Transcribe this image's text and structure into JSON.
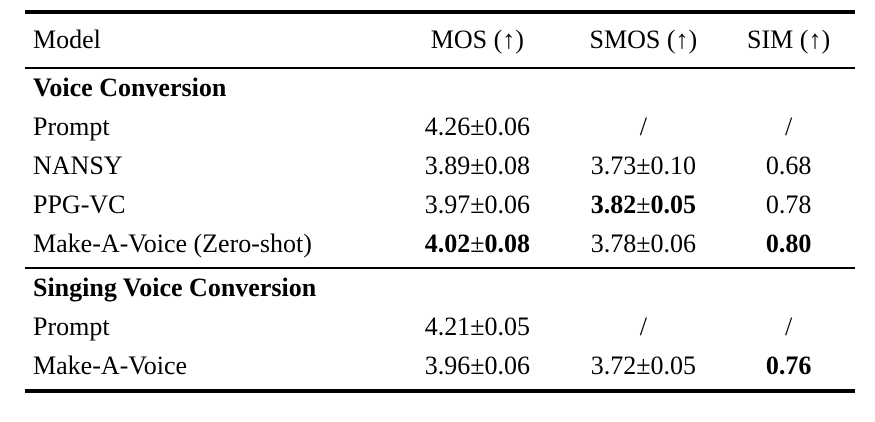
{
  "table": {
    "columns": [
      {
        "label": "Model"
      },
      {
        "label": "MOS (↑)"
      },
      {
        "label": "SMOS (↑)"
      },
      {
        "label": "SIM (↑)"
      }
    ],
    "sections": [
      {
        "header": "Voice Conversion",
        "rows": [
          {
            "model": "Prompt",
            "cells": [
              {
                "text": "4.26±0.06",
                "bold": false
              },
              {
                "text": "/",
                "bold": false
              },
              {
                "text": "/",
                "bold": false
              }
            ]
          },
          {
            "model": "NANSY",
            "cells": [
              {
                "text": "3.89±0.08",
                "bold": false
              },
              {
                "text": "3.73±0.10",
                "bold": false
              },
              {
                "text": "0.68",
                "bold": false
              }
            ]
          },
          {
            "model": "PPG-VC",
            "cells": [
              {
                "text": "3.97±0.06",
                "bold": false
              },
              {
                "text": "3.82±0.05",
                "bold": true
              },
              {
                "text": "0.78",
                "bold": false
              }
            ]
          },
          {
            "model": "Make-A-Voice (Zero-shot)",
            "cells": [
              {
                "text": "4.02±0.08",
                "bold": true
              },
              {
                "text": "3.78±0.06",
                "bold": false
              },
              {
                "text": "0.80",
                "bold": true
              }
            ]
          }
        ]
      },
      {
        "header": "Singing Voice Conversion",
        "rows": [
          {
            "model": "Prompt",
            "cells": [
              {
                "text": "4.21±0.05",
                "bold": false
              },
              {
                "text": "/",
                "bold": false
              },
              {
                "text": "/",
                "bold": false
              }
            ]
          },
          {
            "model": "Make-A-Voice",
            "cells": [
              {
                "text": "3.96±0.06",
                "bold": false
              },
              {
                "text": "3.72±0.05",
                "bold": false
              },
              {
                "text": "0.76",
                "bold": true
              }
            ]
          }
        ]
      }
    ]
  }
}
